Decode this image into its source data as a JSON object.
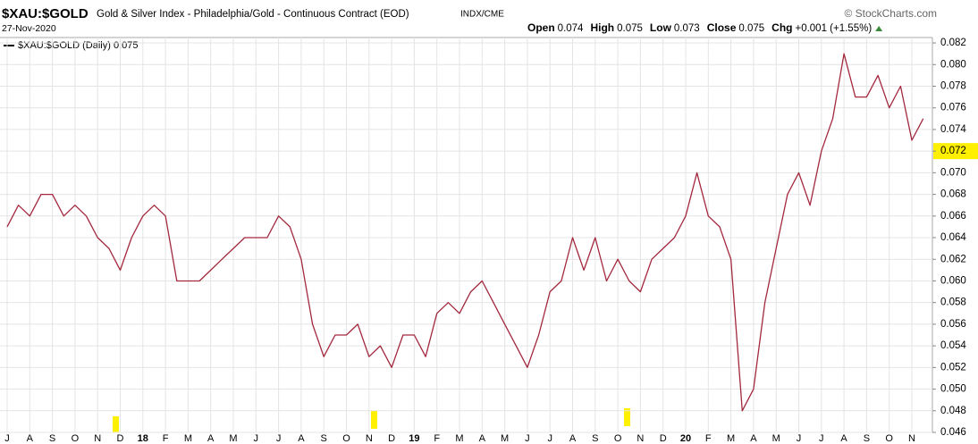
{
  "chart_data": {
    "type": "line",
    "title": "$XAU:$GOLD",
    "subtitle": "Gold & Silver Index - Philadelphia/Gold - Continuous Contract (EOD)",
    "exchange": "INDX/CME",
    "date": "27-Nov-2020",
    "source": "© StockCharts.com",
    "quote": {
      "open_label": "Open",
      "open": 0.074,
      "high_label": "High",
      "high": 0.075,
      "low_label": "Low",
      "low": 0.073,
      "close_label": "Close",
      "close": 0.075,
      "chg_label": "Chg",
      "chg": "+0.001 (+1.55%)"
    },
    "categories": [
      "J",
      null,
      "A",
      null,
      "S",
      null,
      "O",
      null,
      "N",
      null,
      "D",
      null,
      "18",
      null,
      "F",
      null,
      "M",
      null,
      "A",
      null,
      "M",
      null,
      "J",
      null,
      "J",
      null,
      "A",
      null,
      "S",
      null,
      "O",
      null,
      "N",
      null,
      "D",
      null,
      "19",
      null,
      "F",
      null,
      "M",
      null,
      "A",
      null,
      "M",
      null,
      "J",
      null,
      "J",
      null,
      "A",
      null,
      "S",
      null,
      "O",
      null,
      "N",
      null,
      "D",
      null,
      "20",
      null,
      "F",
      null,
      "M",
      null,
      "A",
      null,
      "M",
      null,
      "J",
      null,
      "J",
      null,
      "A",
      null,
      "S",
      null,
      "O",
      null,
      "N",
      null
    ],
    "series": [
      {
        "name": "$XAU:$GOLD (Daily) 0.075",
        "color": "#a3283e",
        "values": [
          0.065,
          0.067,
          0.066,
          0.068,
          0.068,
          0.066,
          0.067,
          0.066,
          0.064,
          0.063,
          0.061,
          0.064,
          0.066,
          0.067,
          0.066,
          0.06,
          0.06,
          0.06,
          0.061,
          0.062,
          0.063,
          0.064,
          0.064,
          0.064,
          0.066,
          0.065,
          0.062,
          0.056,
          0.053,
          0.055,
          0.055,
          0.056,
          0.053,
          0.054,
          0.052,
          0.055,
          0.055,
          0.053,
          0.057,
          0.058,
          0.057,
          0.059,
          0.06,
          0.058,
          0.056,
          0.054,
          0.052,
          0.055,
          0.059,
          0.06,
          0.064,
          0.061,
          0.064,
          0.06,
          0.062,
          0.06,
          0.059,
          0.062,
          0.063,
          0.064,
          0.066,
          0.07,
          0.066,
          0.065,
          0.062,
          0.048,
          0.05,
          0.058,
          0.063,
          0.068,
          0.07,
          0.067,
          0.072,
          0.075,
          0.081,
          0.077,
          0.077,
          0.079,
          0.076,
          0.078,
          0.073,
          0.075
        ]
      }
    ],
    "ylim": [
      0.046,
      0.0825
    ],
    "yticks": [
      0.046,
      0.048,
      {
        "value": 0.05,
        "label": "0.050"
      },
      0.052,
      0.054,
      0.056,
      0.058,
      {
        "value": 0.06,
        "label": "0.060"
      },
      0.062,
      0.064,
      0.066,
      0.068,
      {
        "value": 0.07,
        "label": "0.070"
      },
      0.072,
      0.074,
      0.076,
      0.078,
      {
        "value": 0.08,
        "label": "0.080"
      },
      0.082
    ],
    "highlight_value": 0.072,
    "grid": true
  }
}
